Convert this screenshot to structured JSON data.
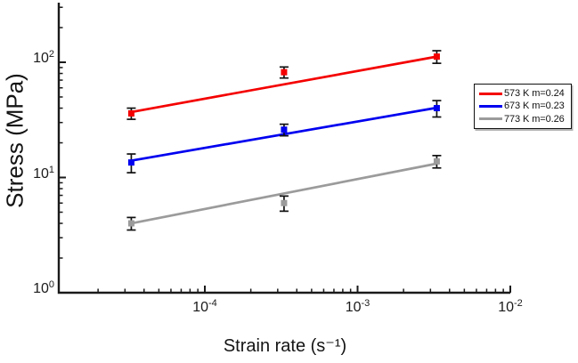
{
  "chart_data": {
    "type": "line",
    "title": "",
    "xlabel": "Strain rate (s⁻¹)",
    "ylabel": "Stress (MPa)",
    "x_scale": "log",
    "y_scale": "log",
    "xlim": [
      1.1e-05,
      0.01
    ],
    "ylim": [
      1,
      320
    ],
    "grid": false,
    "legend_position": "right",
    "xticks": [
      {
        "label": "10",
        "sup": "-4",
        "value": 0.0001
      },
      {
        "label": "10",
        "sup": "-3",
        "value": 0.001
      },
      {
        "label": "10",
        "sup": "-2",
        "value": 0.01
      }
    ],
    "yticks": [
      {
        "label": "10",
        "sup": "0",
        "value": 1
      },
      {
        "label": "10",
        "sup": "1",
        "value": 10
      },
      {
        "label": "10",
        "sup": "2",
        "value": 100
      }
    ],
    "marker": "square",
    "error_bar_color": "#111111",
    "series": [
      {
        "label": "573 K m=0.24",
        "temperature": "573 K",
        "m": 0.24,
        "color": "#f40000",
        "points": {
          "x": [
            3.3e-05,
            0.00033,
            0.0033
          ],
          "y": [
            36,
            82,
            112
          ],
          "yerr": [
            4,
            9,
            14
          ]
        },
        "fit_line": {
          "x": [
            3.3e-05,
            0.0033
          ],
          "y": [
            37,
            112
          ]
        }
      },
      {
        "label": "673 K m=0.23",
        "temperature": "673 K",
        "m": 0.23,
        "color": "#0000f0",
        "points": {
          "x": [
            3.3e-05,
            0.00033,
            0.0033
          ],
          "y": [
            13.5,
            26,
            40
          ],
          "yerr": [
            2.5,
            3,
            6.5
          ]
        },
        "fit_line": {
          "x": [
            3.3e-05,
            0.0033
          ],
          "y": [
            14,
            40.3
          ]
        }
      },
      {
        "label": "773 K m=0.26",
        "temperature": "773 K",
        "m": 0.26,
        "color": "#9b9b9b",
        "points": {
          "x": [
            3.3e-05,
            0.00033,
            0.0033
          ],
          "y": [
            4.0,
            6.0,
            13.8
          ],
          "yerr": [
            0.5,
            0.9,
            1.7
          ]
        },
        "fit_line": {
          "x": [
            3.3e-05,
            0.0033
          ],
          "y": [
            4.0,
            13.2
          ]
        }
      }
    ]
  }
}
